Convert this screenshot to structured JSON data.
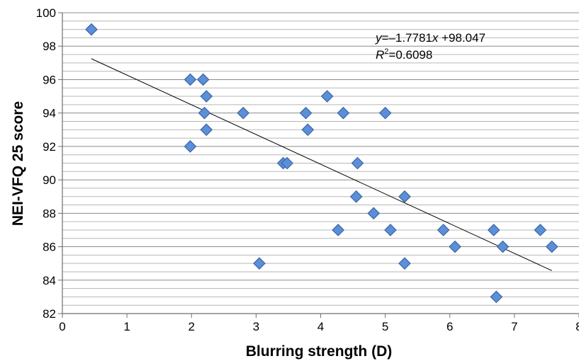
{
  "chart_data": {
    "type": "scatter",
    "xlabel": "Blurring strength (D)",
    "ylabel": "NEI-VFQ 25 score",
    "xlim": [
      0,
      8
    ],
    "ylim": [
      82,
      100
    ],
    "x_ticks": [
      0,
      1,
      2,
      3,
      4,
      5,
      6,
      7,
      8
    ],
    "y_ticks": [
      82,
      84,
      86,
      88,
      90,
      92,
      94,
      96,
      98,
      100
    ],
    "y_minor_step": 0.5,
    "grid": "horizontal",
    "legend": "none",
    "marker": {
      "shape": "diamond",
      "fill": "#5b8fd6",
      "stroke": "#3a65a8"
    },
    "series": [
      {
        "points": [
          {
            "x": 0.45,
            "y": 99
          },
          {
            "x": 1.98,
            "y": 96
          },
          {
            "x": 2.18,
            "y": 96
          },
          {
            "x": 2.23,
            "y": 95
          },
          {
            "x": 2.2,
            "y": 94
          },
          {
            "x": 2.23,
            "y": 93
          },
          {
            "x": 1.98,
            "y": 92
          },
          {
            "x": 2.8,
            "y": 94
          },
          {
            "x": 3.05,
            "y": 85
          },
          {
            "x": 3.42,
            "y": 91
          },
          {
            "x": 3.48,
            "y": 91
          },
          {
            "x": 3.77,
            "y": 94
          },
          {
            "x": 3.8,
            "y": 93
          },
          {
            "x": 4.1,
            "y": 95
          },
          {
            "x": 4.27,
            "y": 87
          },
          {
            "x": 4.35,
            "y": 94
          },
          {
            "x": 4.55,
            "y": 89
          },
          {
            "x": 4.57,
            "y": 91
          },
          {
            "x": 4.82,
            "y": 88
          },
          {
            "x": 5.0,
            "y": 94
          },
          {
            "x": 5.08,
            "y": 87
          },
          {
            "x": 5.3,
            "y": 89
          },
          {
            "x": 5.3,
            "y": 85
          },
          {
            "x": 5.9,
            "y": 87
          },
          {
            "x": 6.08,
            "y": 86
          },
          {
            "x": 6.68,
            "y": 87
          },
          {
            "x": 6.72,
            "y": 83
          },
          {
            "x": 6.82,
            "y": 86
          },
          {
            "x": 7.4,
            "y": 87
          },
          {
            "x": 7.58,
            "y": 86
          }
        ]
      }
    ],
    "trendline": {
      "slope": -1.7781,
      "intercept": 98.047,
      "x_range": [
        0.45,
        7.58
      ],
      "color": "#000000"
    },
    "annotation": {
      "equation_parts": [
        "y",
        "=–1.7781",
        "x",
        " +98.047"
      ],
      "r2_parts": [
        "R",
        "2",
        "=0.6098"
      ]
    }
  }
}
